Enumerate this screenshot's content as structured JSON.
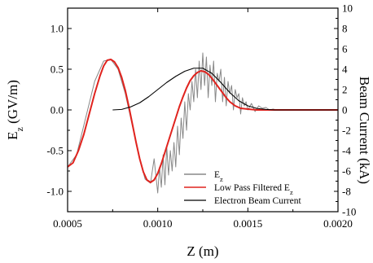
{
  "chart_data": {
    "type": "line",
    "xlabel": "Z (m)",
    "ylabel_main": "E",
    "ylabel_sub": "z",
    "ylabel_unit": " (GV/m)",
    "y2label": "Beam Current (kA)",
    "xlim": [
      0.0005,
      0.002
    ],
    "ylim": [
      -1.25,
      1.25
    ],
    "y2lim": [
      -10,
      10
    ],
    "xticks": [
      {
        "value": 0.0005,
        "label": "0.0005"
      },
      {
        "value": 0.001,
        "label": "0.0010"
      },
      {
        "value": 0.0015,
        "label": "0.0015"
      },
      {
        "value": 0.002,
        "label": "0.0020"
      }
    ],
    "yticks": [
      {
        "value": 1.0,
        "label": "1.0"
      },
      {
        "value": 0.5,
        "label": "0.5"
      },
      {
        "value": 0.0,
        "label": "0.0"
      },
      {
        "value": -0.5,
        "label": "-0.5"
      },
      {
        "value": -1.0,
        "label": "-1.0"
      }
    ],
    "y2ticks": [
      {
        "value": 10,
        "label": "10"
      },
      {
        "value": 8,
        "label": "8"
      },
      {
        "value": 6,
        "label": "6"
      },
      {
        "value": 4,
        "label": "4"
      },
      {
        "value": 2,
        "label": "2"
      },
      {
        "value": 0,
        "label": "0"
      },
      {
        "value": -2,
        "label": "-2"
      },
      {
        "value": -4,
        "label": "-4"
      },
      {
        "value": -6,
        "label": "-6"
      },
      {
        "value": -8,
        "label": "-8"
      },
      {
        "value": -10,
        "label": "-10"
      }
    ],
    "legend_position": "bottom-right",
    "series": [
      {
        "name_main": "E",
        "name_sub": "z",
        "axis": "left",
        "color": "#888888",
        "x": [
          0.0005,
          0.00055,
          0.0006,
          0.00065,
          0.0007,
          0.00074,
          0.00078,
          0.00082,
          0.00086,
          0.0009,
          0.00093,
          0.00096,
          0.00098,
          0.001,
          0.00101,
          0.00102,
          0.00103,
          0.00104,
          0.00105,
          0.00106,
          0.00107,
          0.00108,
          0.00109,
          0.0011,
          0.00111,
          0.00112,
          0.00113,
          0.00114,
          0.00115,
          0.00116,
          0.00117,
          0.00118,
          0.00119,
          0.0012,
          0.00121,
          0.00122,
          0.00123,
          0.00124,
          0.00125,
          0.00126,
          0.00127,
          0.00128,
          0.00129,
          0.0013,
          0.00131,
          0.00132,
          0.00133,
          0.00134,
          0.00135,
          0.00136,
          0.00137,
          0.00138,
          0.00139,
          0.0014,
          0.00141,
          0.00142,
          0.00143,
          0.00144,
          0.00145,
          0.00146,
          0.00147,
          0.00148,
          0.00149,
          0.0015,
          0.00152,
          0.00154,
          0.00156,
          0.00158,
          0.0016,
          0.00162,
          0.00164,
          0.00166,
          0.0017,
          0.0018,
          0.0019,
          0.002
        ],
        "y": [
          -0.7,
          -0.55,
          -0.1,
          0.35,
          0.6,
          0.62,
          0.5,
          0.2,
          -0.2,
          -0.6,
          -0.85,
          -0.9,
          -0.6,
          -1.02,
          -0.7,
          -0.95,
          -0.55,
          -0.92,
          -0.45,
          -0.8,
          -0.5,
          -0.75,
          -0.4,
          -0.7,
          -0.2,
          -0.55,
          -0.1,
          -0.35,
          0.1,
          -0.25,
          0.2,
          0.0,
          0.35,
          0.1,
          0.5,
          0.15,
          0.6,
          0.25,
          0.7,
          0.3,
          0.65,
          0.15,
          0.55,
          0.3,
          0.6,
          0.1,
          0.45,
          0.35,
          0.5,
          0.1,
          0.4,
          0.05,
          0.35,
          0.2,
          0.3,
          0.0,
          0.25,
          0.15,
          0.2,
          -0.05,
          0.15,
          0.05,
          0.1,
          0.0,
          0.08,
          -0.02,
          0.05,
          0.02,
          0.03,
          0.0,
          0.01,
          0.0,
          0.0,
          0.0,
          0.0,
          0.0
        ]
      },
      {
        "name_main": "Low Pass Filtered E",
        "name_sub": "z",
        "axis": "left",
        "color": "#e0231e",
        "x": [
          0.0005,
          0.00053,
          0.00056,
          0.00059,
          0.00062,
          0.00065,
          0.00068,
          0.0007,
          0.00072,
          0.00074,
          0.00076,
          0.00078,
          0.0008,
          0.00082,
          0.00084,
          0.00086,
          0.00088,
          0.0009,
          0.00092,
          0.00094,
          0.00096,
          0.00098,
          0.001,
          0.00102,
          0.00104,
          0.00106,
          0.00108,
          0.0011,
          0.00112,
          0.00114,
          0.00116,
          0.00118,
          0.0012,
          0.00122,
          0.00124,
          0.00126,
          0.00128,
          0.0013,
          0.00132,
          0.00134,
          0.00136,
          0.00138,
          0.0014,
          0.00143,
          0.00146,
          0.0015,
          0.00155,
          0.0016,
          0.0017,
          0.0018,
          0.0019,
          0.002
        ],
        "y": [
          -0.7,
          -0.65,
          -0.5,
          -0.3,
          -0.05,
          0.2,
          0.42,
          0.54,
          0.61,
          0.62,
          0.59,
          0.52,
          0.4,
          0.24,
          0.04,
          -0.18,
          -0.4,
          -0.6,
          -0.76,
          -0.86,
          -0.89,
          -0.86,
          -0.78,
          -0.66,
          -0.52,
          -0.38,
          -0.24,
          -0.1,
          0.04,
          0.16,
          0.27,
          0.36,
          0.42,
          0.46,
          0.48,
          0.47,
          0.44,
          0.39,
          0.33,
          0.27,
          0.21,
          0.15,
          0.1,
          0.05,
          0.02,
          0.01,
          0.0,
          0.0,
          0.0,
          0.0,
          0.0,
          0.0
        ]
      },
      {
        "name": "Electron Beam Current",
        "axis": "right",
        "color": "#000000",
        "x": [
          0.00075,
          0.0008,
          0.00085,
          0.0009,
          0.00095,
          0.001,
          0.00105,
          0.0011,
          0.00115,
          0.0012,
          0.00125,
          0.0013,
          0.00135,
          0.0014,
          0.00145,
          0.0015,
          0.00155,
          0.0016,
          0.00165,
          0.0017,
          0.0018,
          0.0019,
          0.002
        ],
        "y": [
          0.0,
          0.05,
          0.3,
          0.7,
          1.3,
          2.0,
          2.7,
          3.3,
          3.8,
          4.1,
          4.1,
          3.6,
          2.7,
          1.7,
          0.9,
          0.4,
          0.15,
          0.05,
          0.0,
          0.0,
          0.0,
          0.0,
          0.0
        ]
      }
    ]
  }
}
